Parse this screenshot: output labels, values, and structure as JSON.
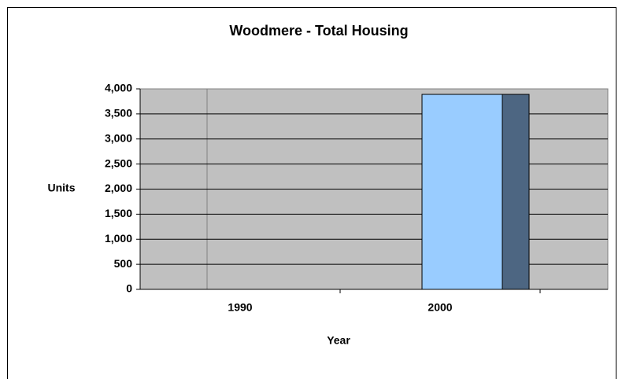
{
  "chart_data": {
    "type": "bar",
    "title": "Woodmere - Total Housing",
    "xlabel": "Year",
    "ylabel": "Units",
    "categories": [
      "1990",
      "2000"
    ],
    "series": [
      {
        "color": "#99ccff",
        "values": [
          null,
          3890
        ]
      },
      {
        "color": "#4d6682",
        "values": [
          null,
          3890
        ]
      }
    ],
    "ylim": [
      0,
      4000
    ],
    "yticks": [
      0,
      {
        "value": 500,
        "label": "500"
      },
      {
        "value": 1000,
        "label": "1,000"
      },
      {
        "value": 1500,
        "label": "1,500"
      },
      {
        "value": 2000,
        "label": "2,000"
      },
      {
        "value": 2500,
        "label": "2,500"
      },
      {
        "value": 3000,
        "label": "3,000"
      },
      {
        "value": 3500,
        "label": "3,500"
      },
      {
        "value": 4000,
        "label": "4,000"
      }
    ],
    "grid": true
  }
}
